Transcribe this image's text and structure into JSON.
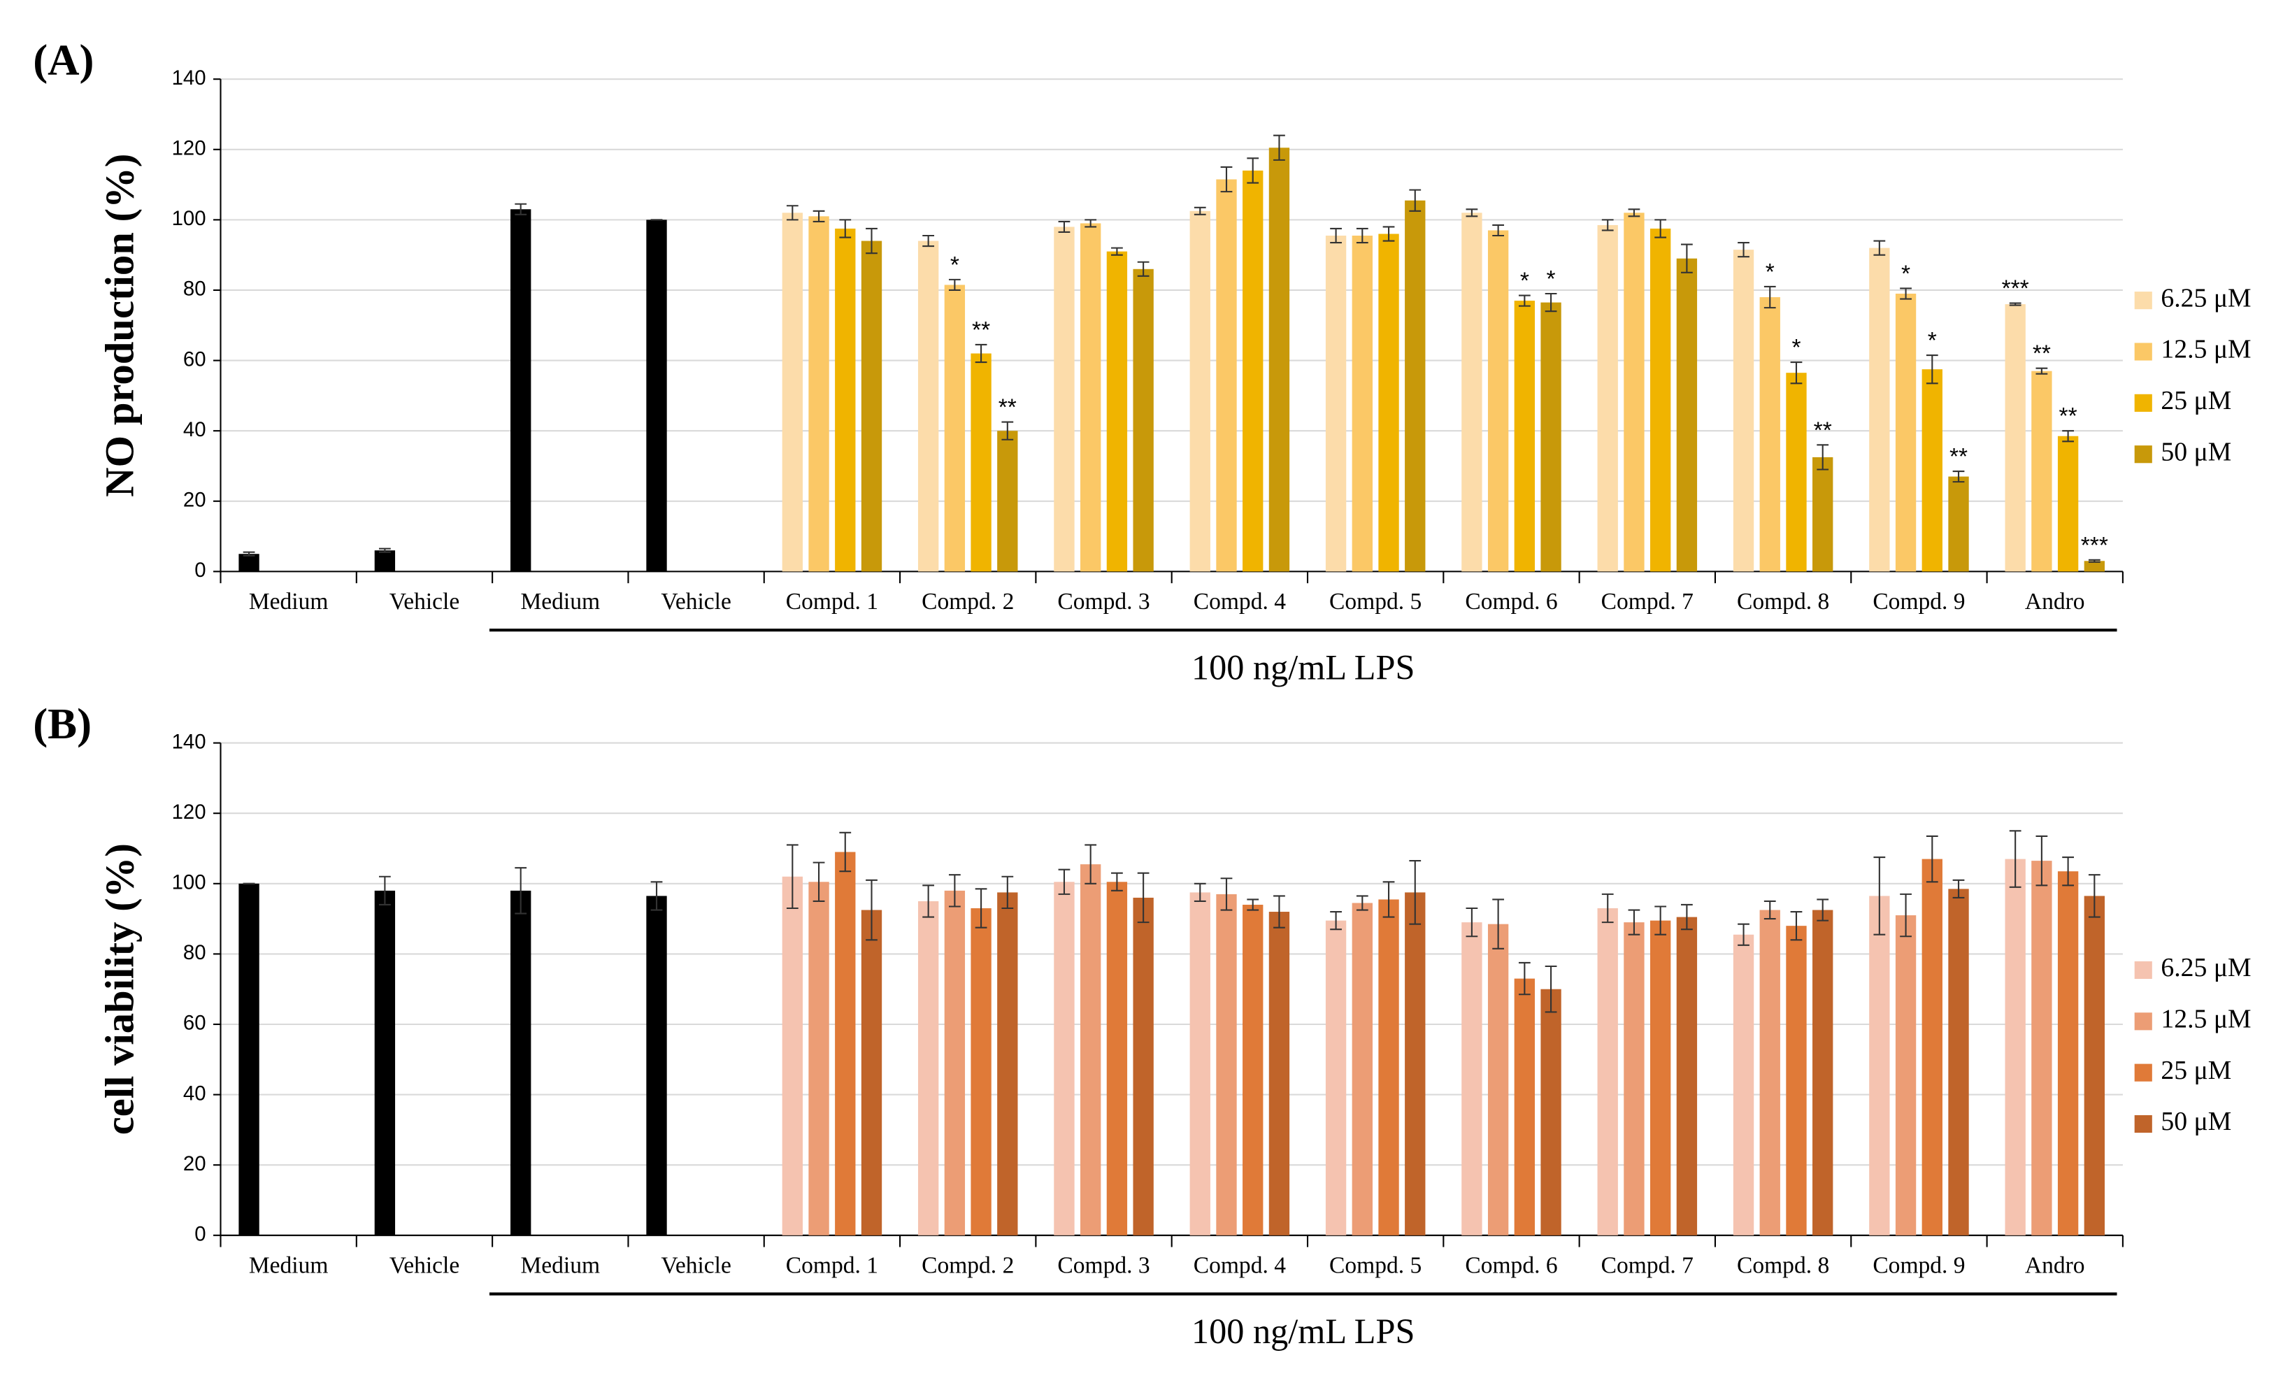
{
  "chart_data": [
    {
      "type": "bar",
      "panel": "(A)",
      "ylabel": "NO production (%)",
      "group_label": "100 ng/mL LPS",
      "categories": [
        "Medium",
        "Vehicle",
        "Medium",
        "Vehicle",
        "Compd. 1",
        "Compd. 2",
        "Compd. 3",
        "Compd. 4",
        "Compd. 5",
        "Compd. 6",
        "Compd. 7",
        "Compd. 8",
        "Compd. 9",
        "Andro"
      ],
      "ylim": [
        0,
        140
      ],
      "yticks": [
        0,
        20,
        40,
        60,
        80,
        100,
        120,
        140
      ],
      "grid": true,
      "control_color": "#000000",
      "control_values": [
        5,
        6,
        103,
        100,
        null,
        null,
        null,
        null,
        null,
        null,
        null,
        null,
        null,
        null
      ],
      "control_errors": [
        0.5,
        0.5,
        1.5,
        0,
        null,
        null,
        null,
        null,
        null,
        null,
        null,
        null,
        null,
        null
      ],
      "series": [
        {
          "name": "6.25 μM",
          "color": "#fcdcaa",
          "values": [
            null,
            null,
            null,
            null,
            102,
            94,
            98,
            102.5,
            95.5,
            102,
            98.5,
            91.5,
            92,
            76
          ],
          "errors": [
            null,
            null,
            null,
            null,
            2,
            1.5,
            1.5,
            1,
            2,
            1,
            1.5,
            2,
            2,
            0.3
          ],
          "stars": [
            null,
            null,
            null,
            null,
            null,
            null,
            null,
            null,
            null,
            null,
            null,
            null,
            null,
            "***"
          ]
        },
        {
          "name": "12.5 μM",
          "color": "#fbc866",
          "values": [
            null,
            null,
            null,
            null,
            101,
            81.5,
            99,
            111.5,
            95.5,
            97,
            102,
            78,
            79,
            57
          ],
          "errors": [
            null,
            null,
            null,
            null,
            1.5,
            1.5,
            1,
            3.5,
            2,
            1.5,
            1,
            3,
            1.5,
            0.8
          ],
          "stars": [
            null,
            null,
            null,
            null,
            null,
            "*",
            null,
            null,
            null,
            null,
            null,
            "*",
            "*",
            "**"
          ]
        },
        {
          "name": "25 μM",
          "color": "#f0b400",
          "values": [
            null,
            null,
            null,
            null,
            97.5,
            62,
            91,
            114,
            96,
            77,
            97.5,
            56.5,
            57.5,
            38.5
          ],
          "errors": [
            null,
            null,
            null,
            null,
            2.5,
            2.5,
            1,
            3.5,
            2,
            1.5,
            2.5,
            3,
            4,
            1.5
          ],
          "stars": [
            null,
            null,
            null,
            null,
            null,
            "**",
            null,
            null,
            null,
            "*",
            null,
            "*",
            "*",
            "**"
          ]
        },
        {
          "name": "50 μM",
          "color": "#c8990a",
          "values": [
            null,
            null,
            null,
            null,
            94,
            40,
            86,
            120.5,
            105.5,
            76.5,
            89,
            32.5,
            27,
            3
          ],
          "errors": [
            null,
            null,
            null,
            null,
            3.5,
            2.5,
            2,
            3.5,
            3,
            2.5,
            4,
            3.5,
            1.5,
            0.3
          ],
          "stars": [
            null,
            null,
            null,
            null,
            null,
            "**",
            null,
            null,
            null,
            "*",
            null,
            "**",
            "**",
            "***"
          ]
        }
      ]
    },
    {
      "type": "bar",
      "panel": "(B)",
      "ylabel": "cell viability (%)",
      "group_label": "100 ng/mL LPS",
      "categories": [
        "Medium",
        "Vehicle",
        "Medium",
        "Vehicle",
        "Compd. 1",
        "Compd. 2",
        "Compd. 3",
        "Compd. 4",
        "Compd. 5",
        "Compd. 6",
        "Compd. 7",
        "Compd. 8",
        "Compd. 9",
        "Andro"
      ],
      "ylim": [
        0,
        140
      ],
      "yticks": [
        0,
        20,
        40,
        60,
        80,
        100,
        120,
        140
      ],
      "grid": true,
      "control_color": "#000000",
      "control_values": [
        100,
        98,
        98,
        96.5,
        null,
        null,
        null,
        null,
        null,
        null,
        null,
        null,
        null,
        null
      ],
      "control_errors": [
        0,
        4,
        6.5,
        4,
        null,
        null,
        null,
        null,
        null,
        null,
        null,
        null,
        null,
        null
      ],
      "series": [
        {
          "name": "6.25 μM",
          "color": "#f5c3b0",
          "values": [
            null,
            null,
            null,
            null,
            102,
            95,
            100.5,
            97.5,
            89.5,
            89,
            93,
            85.5,
            96.5,
            107
          ],
          "errors": [
            null,
            null,
            null,
            null,
            9,
            4.5,
            3.5,
            2.5,
            2.5,
            4,
            4,
            3,
            11,
            8
          ]
        },
        {
          "name": "12.5 μM",
          "color": "#ec9d75",
          "values": [
            null,
            null,
            null,
            null,
            100.5,
            98,
            105.5,
            97,
            94.5,
            88.5,
            89,
            92.5,
            91,
            106.5
          ],
          "errors": [
            null,
            null,
            null,
            null,
            5.5,
            4.5,
            5.5,
            4.5,
            2,
            7,
            3.5,
            2.5,
            6,
            7
          ]
        },
        {
          "name": "25 μM",
          "color": "#e07a38",
          "values": [
            null,
            null,
            null,
            null,
            109,
            93,
            100.5,
            94,
            95.5,
            73,
            89.5,
            88,
            107,
            103.5
          ],
          "errors": [
            null,
            null,
            null,
            null,
            5.5,
            5.5,
            2.5,
            1.5,
            5,
            4.5,
            4,
            4,
            6.5,
            4
          ]
        },
        {
          "name": "50 μM",
          "color": "#c0642a",
          "values": [
            null,
            null,
            null,
            null,
            92.5,
            97.5,
            96,
            92,
            97.5,
            70,
            90.5,
            92.5,
            98.5,
            96.5
          ],
          "errors": [
            null,
            null,
            null,
            null,
            8.5,
            4.5,
            7,
            4.5,
            9,
            6.5,
            3.5,
            3,
            2.5,
            6
          ]
        }
      ]
    }
  ]
}
